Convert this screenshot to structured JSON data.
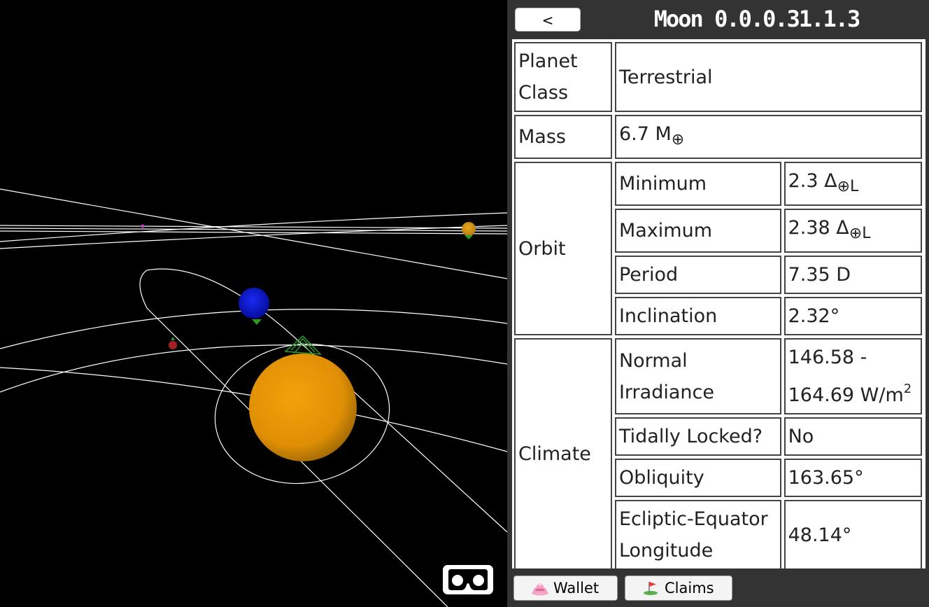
{
  "panel": {
    "back_label": "<",
    "title": "Moon 0.0.0.31.1.3"
  },
  "rows": {
    "planet_class": {
      "label": "Planet Class",
      "value": "Terrestrial"
    },
    "mass": {
      "label": "Mass",
      "value": "6.7 M",
      "unit_sub": "⊕"
    },
    "orbit": {
      "label": "Orbit",
      "minimum": {
        "label": "Minimum",
        "value": "2.3 Δ",
        "unit_sub": "⊕L"
      },
      "maximum": {
        "label": "Maximum",
        "value": "2.38 Δ",
        "unit_sub": "⊕L"
      },
      "period": {
        "label": "Period",
        "value": "7.35 D"
      },
      "inclination": {
        "label": "Inclination",
        "value": "2.32°"
      }
    },
    "climate": {
      "label": "Climate",
      "irradiance": {
        "label": "Normal Irradiance",
        "value": "146.58 - 164.69 W/m",
        "unit_sup": "2"
      },
      "tidally_locked": {
        "label": "Tidally Locked?",
        "value": "No"
      },
      "obliquity": {
        "label": "Obliquity",
        "value": "163.65°"
      },
      "ecliptic": {
        "label": "Ecliptic-Equator Longitude",
        "value": "48.14°"
      }
    }
  },
  "footer": {
    "wallet_label": "Wallet",
    "claims_label": "Claims"
  },
  "colors": {
    "star": "#e89a05",
    "planet": "#0a14e0",
    "small_planet": "#d5a016",
    "red_body": "#a52020",
    "marker": "#2a9a2a",
    "orbit_line": "#ffffff",
    "panel_bg": "#333333"
  }
}
